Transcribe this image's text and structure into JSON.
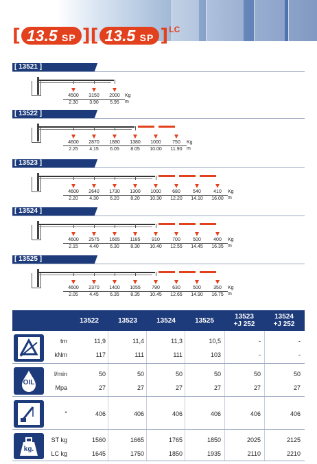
{
  "header": {
    "model_a": "13.5",
    "model_a_suffix": "SP",
    "model_b": "13.5",
    "model_b_suffix": "SP",
    "model_b_sup": "LC",
    "bracket_open": "[",
    "bracket_mid": "][",
    "bracket_close": "]"
  },
  "sections": [
    {
      "label": "[ 13521 ]",
      "points": [
        {
          "kg": "4500",
          "m": "2.30"
        },
        {
          "kg": "3150",
          "m": "3.90"
        },
        {
          "kg": "2000",
          "m": "5.95"
        }
      ],
      "unit_kg": "Kg",
      "unit_m": "m"
    },
    {
      "label": "[ 13522 ]",
      "points": [
        {
          "kg": "4600",
          "m": "2.25"
        },
        {
          "kg": "2870",
          "m": "4.15"
        },
        {
          "kg": "1880",
          "m": "6.05"
        },
        {
          "kg": "1380",
          "m": "8.05"
        },
        {
          "kg": "1000",
          "m": "10.00"
        },
        {
          "kg": "750",
          "m": "11.90"
        }
      ],
      "unit_kg": "Kg",
      "unit_m": "m"
    },
    {
      "label": "[ 13523 ]",
      "points": [
        {
          "kg": "4600",
          "m": "2.20"
        },
        {
          "kg": "2640",
          "m": "4.30"
        },
        {
          "kg": "1730",
          "m": "6.20"
        },
        {
          "kg": "1300",
          "m": "8.20"
        },
        {
          "kg": "1000",
          "m": "10.30"
        },
        {
          "kg": "680",
          "m": "12.20"
        },
        {
          "kg": "540",
          "m": "14.10"
        },
        {
          "kg": "410",
          "m": "16.00"
        }
      ],
      "unit_kg": "Kg",
      "unit_m": "m"
    },
    {
      "label": "[ 13524 ]",
      "points": [
        {
          "kg": "4600",
          "m": "2.15"
        },
        {
          "kg": "2575",
          "m": "4.40"
        },
        {
          "kg": "1665",
          "m": "6.30"
        },
        {
          "kg": "1185",
          "m": "8.30"
        },
        {
          "kg": "910",
          "m": "10.40"
        },
        {
          "kg": "700",
          "m": "12.55"
        },
        {
          "kg": "500",
          "m": "14.45"
        },
        {
          "kg": "400",
          "m": "16.35"
        }
      ],
      "unit_kg": "Kg",
      "unit_m": "m"
    },
    {
      "label": "[ 13525 ]",
      "points": [
        {
          "kg": "4600",
          "m": "2.05"
        },
        {
          "kg": "2370",
          "m": "4.45"
        },
        {
          "kg": "1400",
          "m": "6.35"
        },
        {
          "kg": "1055",
          "m": "8.35"
        },
        {
          "kg": "790",
          "m": "10.45"
        },
        {
          "kg": "630",
          "m": "12.65"
        },
        {
          "kg": "500",
          "m": "14.90"
        },
        {
          "kg": "350",
          "m": "16.75"
        }
      ],
      "unit_kg": "Kg",
      "unit_m": "m"
    }
  ],
  "table": {
    "columns": [
      "13522",
      "13523",
      "13524",
      "13525",
      "13523\n+J 252",
      "13524\n+J 252"
    ],
    "groups": [
      {
        "icon": "lifting-moment-icon",
        "icon_text": "",
        "rows": [
          {
            "label": "tm",
            "values": [
              "11,9",
              "11,4",
              "11,3",
              "10,5",
              "-",
              "-"
            ]
          },
          {
            "label": "kNm",
            "values": [
              "117",
              "111",
              "111",
              "103",
              "-",
              "-"
            ]
          }
        ]
      },
      {
        "icon": "oil-icon",
        "icon_text": "OIL",
        "rows": [
          {
            "label": "l/min",
            "values": [
              "50",
              "50",
              "50",
              "50",
              "50",
              "50"
            ]
          },
          {
            "label": "Mpa",
            "values": [
              "27",
              "27",
              "27",
              "27",
              "27",
              "27"
            ]
          }
        ]
      },
      {
        "icon": "slewing-angle-icon",
        "icon_text": "",
        "rows": [
          {
            "label": "°",
            "values": [
              "406",
              "406",
              "406",
              "406",
              "406",
              "406"
            ]
          }
        ]
      },
      {
        "icon": "weight-icon",
        "icon_text": "kg.",
        "rows": [
          {
            "label": "ST kg",
            "values": [
              "1560",
              "1665",
              "1765",
              "1850",
              "2025",
              "2125"
            ]
          },
          {
            "label": "LC kg",
            "values": [
              "1645",
              "1750",
              "1850",
              "1935",
              "2110",
              "2210"
            ]
          }
        ]
      }
    ]
  },
  "colors": {
    "accent": "#e3401d",
    "navy": "#1d3b7b"
  }
}
